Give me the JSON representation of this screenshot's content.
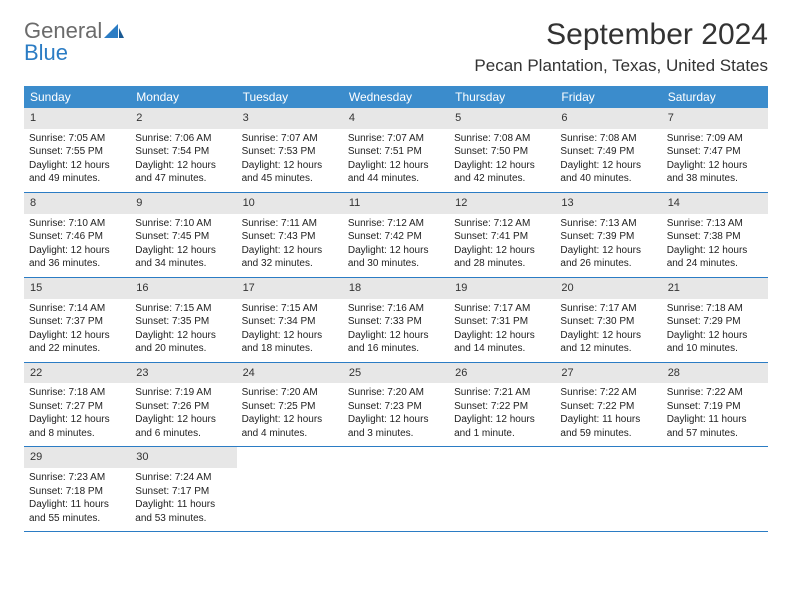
{
  "logo": {
    "general": "General",
    "blue": "Blue"
  },
  "title": "September 2024",
  "location": "Pecan Plantation, Texas, United States",
  "colors": {
    "header_blue": "#3b8ccc",
    "border_blue": "#2b7cc4",
    "day_num_bg": "#e7e7e7",
    "logo_gray": "#6b6b6b",
    "logo_blue": "#2b7cc4"
  },
  "dayNames": [
    "Sunday",
    "Monday",
    "Tuesday",
    "Wednesday",
    "Thursday",
    "Friday",
    "Saturday"
  ],
  "days": [
    {
      "n": "1",
      "sr": "7:05 AM",
      "ss": "7:55 PM",
      "dl": "12 hours and 49 minutes."
    },
    {
      "n": "2",
      "sr": "7:06 AM",
      "ss": "7:54 PM",
      "dl": "12 hours and 47 minutes."
    },
    {
      "n": "3",
      "sr": "7:07 AM",
      "ss": "7:53 PM",
      "dl": "12 hours and 45 minutes."
    },
    {
      "n": "4",
      "sr": "7:07 AM",
      "ss": "7:51 PM",
      "dl": "12 hours and 44 minutes."
    },
    {
      "n": "5",
      "sr": "7:08 AM",
      "ss": "7:50 PM",
      "dl": "12 hours and 42 minutes."
    },
    {
      "n": "6",
      "sr": "7:08 AM",
      "ss": "7:49 PM",
      "dl": "12 hours and 40 minutes."
    },
    {
      "n": "7",
      "sr": "7:09 AM",
      "ss": "7:47 PM",
      "dl": "12 hours and 38 minutes."
    },
    {
      "n": "8",
      "sr": "7:10 AM",
      "ss": "7:46 PM",
      "dl": "12 hours and 36 minutes."
    },
    {
      "n": "9",
      "sr": "7:10 AM",
      "ss": "7:45 PM",
      "dl": "12 hours and 34 minutes."
    },
    {
      "n": "10",
      "sr": "7:11 AM",
      "ss": "7:43 PM",
      "dl": "12 hours and 32 minutes."
    },
    {
      "n": "11",
      "sr": "7:12 AM",
      "ss": "7:42 PM",
      "dl": "12 hours and 30 minutes."
    },
    {
      "n": "12",
      "sr": "7:12 AM",
      "ss": "7:41 PM",
      "dl": "12 hours and 28 minutes."
    },
    {
      "n": "13",
      "sr": "7:13 AM",
      "ss": "7:39 PM",
      "dl": "12 hours and 26 minutes."
    },
    {
      "n": "14",
      "sr": "7:13 AM",
      "ss": "7:38 PM",
      "dl": "12 hours and 24 minutes."
    },
    {
      "n": "15",
      "sr": "7:14 AM",
      "ss": "7:37 PM",
      "dl": "12 hours and 22 minutes."
    },
    {
      "n": "16",
      "sr": "7:15 AM",
      "ss": "7:35 PM",
      "dl": "12 hours and 20 minutes."
    },
    {
      "n": "17",
      "sr": "7:15 AM",
      "ss": "7:34 PM",
      "dl": "12 hours and 18 minutes."
    },
    {
      "n": "18",
      "sr": "7:16 AM",
      "ss": "7:33 PM",
      "dl": "12 hours and 16 minutes."
    },
    {
      "n": "19",
      "sr": "7:17 AM",
      "ss": "7:31 PM",
      "dl": "12 hours and 14 minutes."
    },
    {
      "n": "20",
      "sr": "7:17 AM",
      "ss": "7:30 PM",
      "dl": "12 hours and 12 minutes."
    },
    {
      "n": "21",
      "sr": "7:18 AM",
      "ss": "7:29 PM",
      "dl": "12 hours and 10 minutes."
    },
    {
      "n": "22",
      "sr": "7:18 AM",
      "ss": "7:27 PM",
      "dl": "12 hours and 8 minutes."
    },
    {
      "n": "23",
      "sr": "7:19 AM",
      "ss": "7:26 PM",
      "dl": "12 hours and 6 minutes."
    },
    {
      "n": "24",
      "sr": "7:20 AM",
      "ss": "7:25 PM",
      "dl": "12 hours and 4 minutes."
    },
    {
      "n": "25",
      "sr": "7:20 AM",
      "ss": "7:23 PM",
      "dl": "12 hours and 3 minutes."
    },
    {
      "n": "26",
      "sr": "7:21 AM",
      "ss": "7:22 PM",
      "dl": "12 hours and 1 minute."
    },
    {
      "n": "27",
      "sr": "7:22 AM",
      "ss": "7:22 PM",
      "dl": "11 hours and 59 minutes."
    },
    {
      "n": "28",
      "sr": "7:22 AM",
      "ss": "7:19 PM",
      "dl": "11 hours and 57 minutes."
    },
    {
      "n": "29",
      "sr": "7:23 AM",
      "ss": "7:18 PM",
      "dl": "11 hours and 55 minutes."
    },
    {
      "n": "30",
      "sr": "7:24 AM",
      "ss": "7:17 PM",
      "dl": "11 hours and 53 minutes."
    }
  ],
  "labels": {
    "sunrise": "Sunrise:",
    "sunset": "Sunset:",
    "daylight": "Daylight:"
  }
}
